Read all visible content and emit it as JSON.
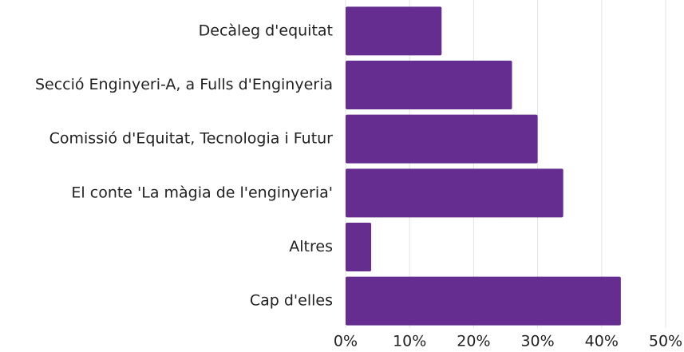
{
  "chart_data": {
    "type": "bar",
    "orientation": "horizontal",
    "categories": [
      "Decàleg d'equitat",
      "Secció Enginyeri-A, a Fulls d'Enginyeria",
      "Comissió d'Equitat, Tecnologia i Futur",
      "El conte 'La màgia de l'enginyeria'",
      "Altres",
      "Cap d'elles"
    ],
    "values": [
      15,
      26,
      30,
      34,
      4,
      43
    ],
    "color": "#662d91",
    "xlim": [
      0,
      50
    ],
    "xticks": [
      {
        "value": 0,
        "label": "0%"
      },
      {
        "value": 10,
        "label": "10%"
      },
      {
        "value": 20,
        "label": "20%"
      },
      {
        "value": 30,
        "label": "30%"
      },
      {
        "value": 40,
        "label": "40%"
      },
      {
        "value": 50,
        "label": "50%"
      }
    ],
    "grid": true
  }
}
